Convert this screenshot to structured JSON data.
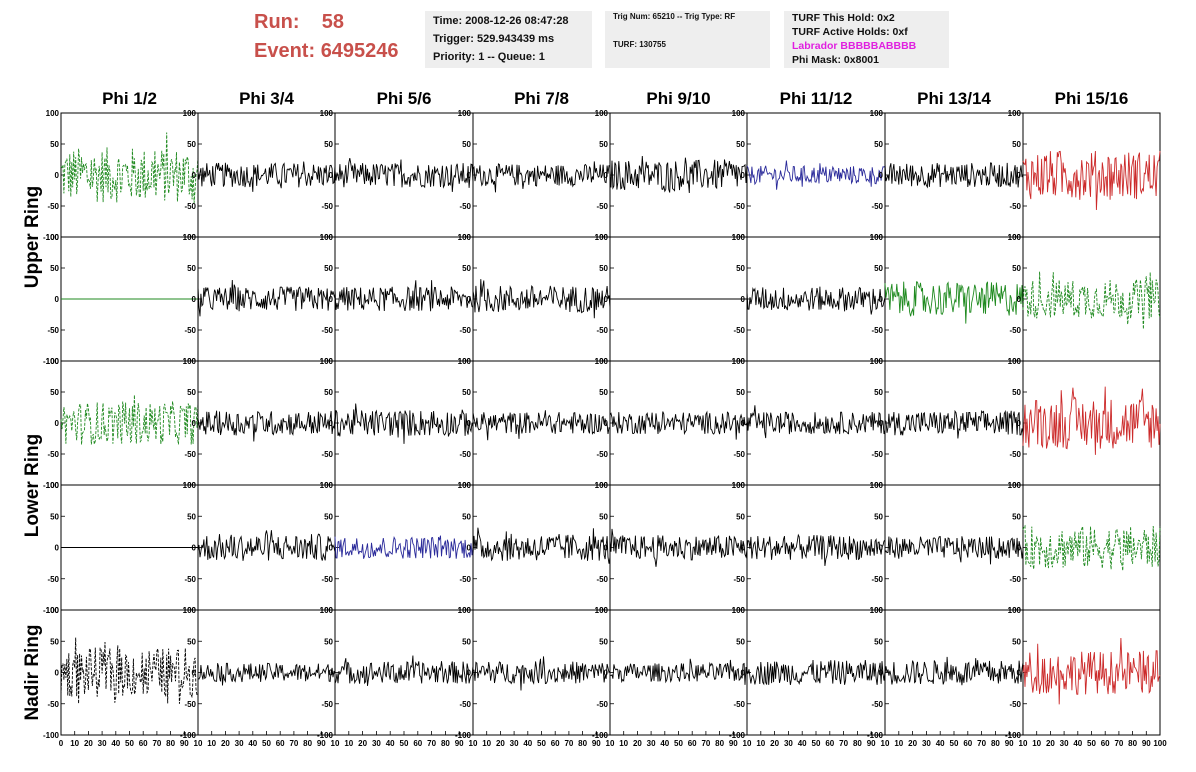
{
  "run_info": {
    "run_label": "Run:",
    "run_value": "58",
    "event_label": "Event:",
    "event_value": "6495246"
  },
  "time_box": {
    "time": "Time: 2008-12-26 08:47:28",
    "trigger": "Trigger: 529.943439 ms",
    "priority": "Priority: 1 -- Queue: 1"
  },
  "trig_box": {
    "trig": "Trig Num: 65210 -- Trig Type: RF",
    "turf": "TURF: 130755"
  },
  "turf_box": {
    "this_hold": "TURF This Hold: 0x2",
    "active_holds": "TURF Active Holds: 0xf",
    "labrador": "Labrador BBBBBABBBB",
    "phi_mask": "Phi Mask: 0x8001"
  },
  "colors": {
    "run": "#c8504b",
    "black": "#000000",
    "green": "#1f8a1f",
    "blue": "#2a2a9a",
    "red": "#cc2a2a",
    "magenta": "#e020e0",
    "box": "#eeeeee"
  },
  "chart_data": {
    "type": "line",
    "columns": [
      "Phi 1/2",
      "Phi 3/4",
      "Phi 5/6",
      "Phi 7/8",
      "Phi 9/10",
      "Phi 11/12",
      "Phi 13/14",
      "Phi 15/16"
    ],
    "rings": [
      "Upper Ring",
      "Lower Ring",
      "Nadir Ring"
    ],
    "x_ticks": [
      0,
      10,
      20,
      30,
      40,
      50,
      60,
      70,
      80,
      90,
      100
    ],
    "y_ticks": [
      -100,
      -50,
      0,
      50,
      100
    ],
    "x_tick_labels_first": [
      "0",
      "10",
      "20",
      "30",
      "40",
      "50",
      "60",
      "70",
      "80",
      "90",
      "10"
    ],
    "x_tick_labels_mid": [
      "10",
      "20",
      "30",
      "40",
      "50",
      "60",
      "70",
      "80",
      "90",
      "10"
    ],
    "x_tick_labels_last": [
      "10",
      "20",
      "30",
      "40",
      "50",
      "60",
      "70",
      "80",
      "90",
      "100"
    ],
    "y_tick_labels": [
      "100",
      "50",
      "0",
      "-50",
      "-100"
    ],
    "xlim": [
      0,
      100
    ],
    "ylim": [
      -100,
      100
    ],
    "grid": false,
    "panel_rows": [
      [
        "green-dashed-large",
        "black",
        "black",
        "black",
        "black",
        "blue",
        "black",
        "red"
      ],
      [
        "flat-green",
        "black",
        "black",
        "black",
        "flat-black",
        "black",
        "green",
        "green-dashed"
      ],
      [
        "green-dashed",
        "black",
        "black",
        "black",
        "black",
        "black",
        "black",
        "red"
      ],
      [
        "flat-black",
        "black",
        "blue",
        "black",
        "black",
        "black",
        "black",
        "green-dashed"
      ],
      [
        "black-dashed-large",
        "black",
        "black",
        "black",
        "black",
        "black",
        "black",
        "red"
      ]
    ],
    "amplitude_by_row": [
      [
        45,
        20,
        20,
        18,
        25,
        15,
        20,
        40
      ],
      [
        0,
        20,
        20,
        22,
        0,
        20,
        28,
        32
      ],
      [
        35,
        20,
        22,
        18,
        18,
        18,
        20,
        42
      ],
      [
        0,
        22,
        18,
        22,
        20,
        20,
        18,
        35
      ],
      [
        40,
        15,
        18,
        18,
        15,
        20,
        20,
        35
      ]
    ]
  }
}
